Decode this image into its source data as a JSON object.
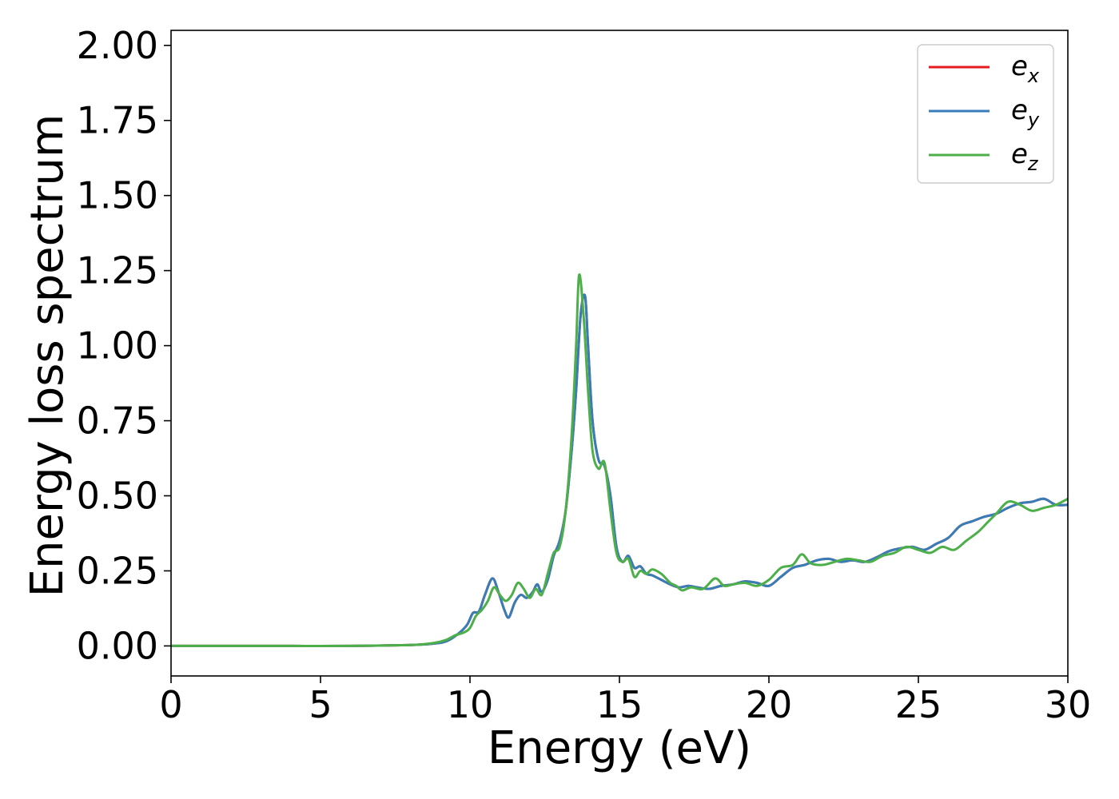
{
  "chart_data": {
    "type": "line",
    "xlabel": "Energy (eV)",
    "ylabel": "Energy loss spectrum",
    "xlim": [
      0,
      30
    ],
    "ylim": [
      -0.1,
      2.05
    ],
    "x_ticks": [
      "0",
      "5",
      "10",
      "15",
      "20",
      "25",
      "30"
    ],
    "y_ticks": [
      "0.00",
      "0.25",
      "0.50",
      "0.75",
      "1.00",
      "1.25",
      "1.50",
      "1.75",
      "2.00"
    ],
    "grid": false,
    "legend_position": "top-right",
    "series": [
      {
        "name": "e_x",
        "label_base": "e",
        "label_sub": "x",
        "color": "#e41a1c",
        "x": [
          0,
          2,
          4,
          6,
          8,
          8.8,
          9.2,
          9.6,
          9.9,
          10.1,
          10.3,
          10.5,
          10.75,
          10.95,
          11.15,
          11.3,
          11.5,
          11.7,
          11.9,
          12.1,
          12.25,
          12.4,
          12.6,
          12.8,
          13.0,
          13.2,
          13.4,
          13.55,
          13.7,
          13.85,
          13.95,
          14.1,
          14.3,
          14.5,
          14.7,
          14.9,
          15.1,
          15.3,
          15.5,
          15.7,
          15.9,
          16.1,
          16.4,
          16.7,
          17.0,
          17.3,
          17.6,
          18.0,
          18.4,
          18.8,
          19.2,
          19.6,
          20.0,
          20.4,
          20.8,
          21.2,
          21.6,
          22.0,
          22.4,
          22.8,
          23.2,
          23.6,
          24.0,
          24.4,
          24.8,
          25.2,
          25.6,
          26.0,
          26.4,
          26.8,
          27.2,
          27.6,
          28.0,
          28.4,
          28.8,
          29.2,
          29.6,
          30.0
        ],
        "values": [
          0,
          0,
          0,
          0,
          0.003,
          0.008,
          0.015,
          0.04,
          0.07,
          0.11,
          0.115,
          0.17,
          0.225,
          0.18,
          0.12,
          0.095,
          0.145,
          0.17,
          0.16,
          0.18,
          0.205,
          0.18,
          0.22,
          0.3,
          0.35,
          0.45,
          0.65,
          0.85,
          1.1,
          1.165,
          1.0,
          0.75,
          0.62,
          0.6,
          0.5,
          0.33,
          0.28,
          0.3,
          0.26,
          0.265,
          0.24,
          0.235,
          0.22,
          0.205,
          0.195,
          0.2,
          0.195,
          0.19,
          0.2,
          0.205,
          0.215,
          0.21,
          0.2,
          0.23,
          0.26,
          0.27,
          0.285,
          0.29,
          0.28,
          0.285,
          0.28,
          0.295,
          0.315,
          0.325,
          0.33,
          0.32,
          0.34,
          0.36,
          0.4,
          0.415,
          0.43,
          0.44,
          0.46,
          0.475,
          0.48,
          0.49,
          0.47,
          0.47
        ]
      },
      {
        "name": "e_y",
        "label_base": "e",
        "label_sub": "y",
        "color": "#377eb8",
        "x": [
          0,
          2,
          4,
          6,
          8,
          8.8,
          9.2,
          9.6,
          9.9,
          10.1,
          10.3,
          10.5,
          10.75,
          10.95,
          11.15,
          11.3,
          11.5,
          11.7,
          11.9,
          12.1,
          12.25,
          12.4,
          12.6,
          12.8,
          13.0,
          13.2,
          13.4,
          13.55,
          13.7,
          13.85,
          13.95,
          14.1,
          14.3,
          14.5,
          14.7,
          14.9,
          15.1,
          15.3,
          15.5,
          15.7,
          15.9,
          16.1,
          16.4,
          16.7,
          17.0,
          17.3,
          17.6,
          18.0,
          18.4,
          18.8,
          19.2,
          19.6,
          20.0,
          20.4,
          20.8,
          21.2,
          21.6,
          22.0,
          22.4,
          22.8,
          23.2,
          23.6,
          24.0,
          24.4,
          24.8,
          25.2,
          25.6,
          26.0,
          26.4,
          26.8,
          27.2,
          27.6,
          28.0,
          28.4,
          28.8,
          29.2,
          29.6,
          30.0
        ],
        "values": [
          0,
          0,
          0,
          0,
          0.003,
          0.008,
          0.015,
          0.04,
          0.07,
          0.11,
          0.115,
          0.17,
          0.225,
          0.18,
          0.12,
          0.095,
          0.145,
          0.17,
          0.16,
          0.18,
          0.205,
          0.18,
          0.22,
          0.3,
          0.35,
          0.45,
          0.65,
          0.85,
          1.1,
          1.165,
          1.0,
          0.75,
          0.62,
          0.6,
          0.5,
          0.33,
          0.28,
          0.3,
          0.26,
          0.265,
          0.24,
          0.235,
          0.22,
          0.205,
          0.195,
          0.2,
          0.195,
          0.19,
          0.2,
          0.205,
          0.215,
          0.21,
          0.2,
          0.23,
          0.26,
          0.27,
          0.285,
          0.29,
          0.28,
          0.285,
          0.28,
          0.295,
          0.315,
          0.325,
          0.33,
          0.32,
          0.34,
          0.36,
          0.4,
          0.415,
          0.43,
          0.44,
          0.46,
          0.475,
          0.48,
          0.49,
          0.47,
          0.47
        ]
      },
      {
        "name": "e_z",
        "label_base": "e",
        "label_sub": "z",
        "color": "#4daf4a",
        "x": [
          0,
          2,
          4,
          6,
          8,
          8.8,
          9.2,
          9.5,
          9.8,
          10.0,
          10.2,
          10.4,
          10.6,
          10.8,
          11.0,
          11.2,
          11.4,
          11.6,
          11.8,
          12.0,
          12.2,
          12.4,
          12.6,
          12.8,
          13.0,
          13.2,
          13.4,
          13.55,
          13.65,
          13.8,
          13.95,
          14.1,
          14.3,
          14.5,
          14.7,
          14.9,
          15.1,
          15.3,
          15.5,
          15.7,
          15.9,
          16.1,
          16.4,
          16.7,
          16.9,
          17.1,
          17.4,
          17.8,
          18.2,
          18.5,
          18.8,
          19.2,
          19.6,
          20.0,
          20.4,
          20.8,
          21.1,
          21.4,
          21.8,
          22.2,
          22.6,
          23.0,
          23.4,
          23.8,
          24.2,
          24.6,
          25.0,
          25.4,
          25.8,
          26.2,
          26.6,
          27.0,
          27.3,
          27.6,
          28.0,
          28.4,
          28.8,
          29.2,
          29.6,
          30.0
        ],
        "values": [
          0,
          0,
          0,
          0,
          0.003,
          0.01,
          0.02,
          0.035,
          0.045,
          0.06,
          0.1,
          0.12,
          0.15,
          0.195,
          0.17,
          0.15,
          0.17,
          0.21,
          0.19,
          0.16,
          0.19,
          0.17,
          0.24,
          0.31,
          0.33,
          0.45,
          0.7,
          1.0,
          1.235,
          1.1,
          0.85,
          0.65,
          0.59,
          0.61,
          0.45,
          0.31,
          0.28,
          0.29,
          0.23,
          0.25,
          0.24,
          0.255,
          0.24,
          0.21,
          0.2,
          0.185,
          0.195,
          0.19,
          0.225,
          0.2,
          0.205,
          0.21,
          0.2,
          0.22,
          0.26,
          0.27,
          0.305,
          0.275,
          0.27,
          0.28,
          0.29,
          0.285,
          0.28,
          0.3,
          0.31,
          0.33,
          0.32,
          0.31,
          0.33,
          0.32,
          0.35,
          0.38,
          0.41,
          0.44,
          0.48,
          0.47,
          0.45,
          0.46,
          0.47,
          0.49
        ]
      }
    ]
  }
}
